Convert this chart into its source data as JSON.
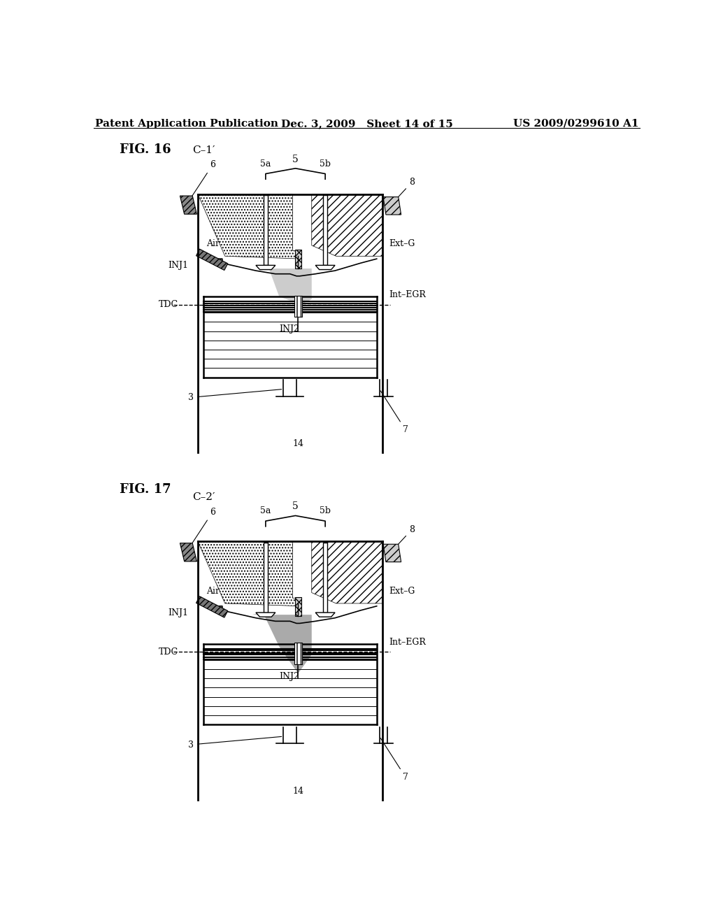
{
  "background_color": "#ffffff",
  "header": {
    "left": "Patent Application Publication",
    "center": "Dec. 3, 2009   Sheet 14 of 15",
    "right": "US 2009/0299610 A1",
    "fontsize": 11
  },
  "fig16_title": "FIG. 16",
  "fig17_title": "FIG. 17"
}
